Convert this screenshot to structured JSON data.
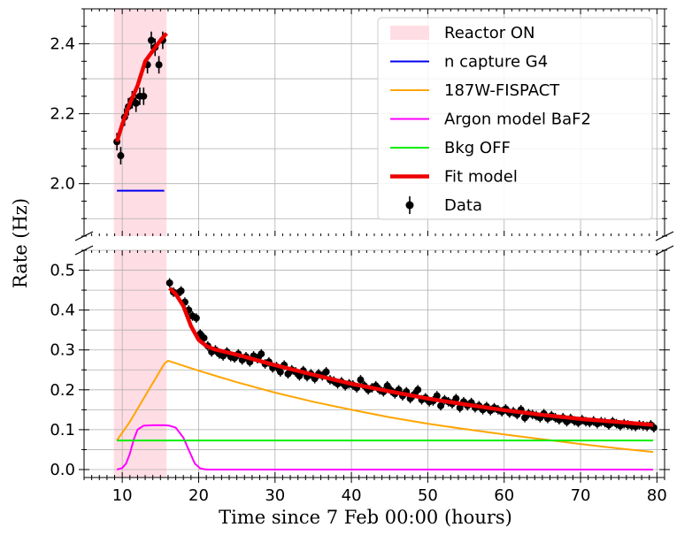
{
  "chart_data": {
    "type": "line",
    "ylabel": "Rate (Hz)",
    "xlabel": "Time since 7 Feb 00:00 (hours)",
    "xlim": [
      5,
      81
    ],
    "broken_axis": true,
    "top_panel": {
      "ylim": [
        1.85,
        2.5
      ],
      "yticks": [
        "2.0",
        "2.2",
        "2.4"
      ],
      "ytick_values": [
        2.0,
        2.2,
        2.4
      ]
    },
    "bottom_panel": {
      "ylim": [
        -0.02,
        0.55
      ],
      "yticks": [
        "0.0",
        "0.1",
        "0.2",
        "0.3",
        "0.4",
        "0.5"
      ],
      "ytick_values": [
        0.0,
        0.1,
        0.2,
        0.3,
        0.4,
        0.5
      ]
    },
    "xticks": [
      "10",
      "20",
      "30",
      "40",
      "50",
      "60",
      "70",
      "80"
    ],
    "xtick_values": [
      10,
      20,
      30,
      40,
      50,
      60,
      70,
      80
    ],
    "reactor_on": {
      "label": "Reactor ON",
      "start": 8.9,
      "end": 15.8,
      "color": "#ffdde4"
    },
    "series": [
      {
        "name": "n capture G4",
        "color": "#0000ee",
        "panel": "top",
        "x": [
          9.3,
          15.5
        ],
        "y": [
          1.98,
          1.98
        ]
      },
      {
        "name": "187W-FISPACT",
        "color": "#ffa500",
        "panel": "bottom",
        "x": [
          9.3,
          11,
          13,
          15.5,
          16,
          20,
          25,
          30,
          35,
          40,
          45,
          50,
          55,
          60,
          65,
          70,
          75,
          79.5
        ],
        "y": [
          0.073,
          0.12,
          0.185,
          0.265,
          0.273,
          0.248,
          0.219,
          0.193,
          0.17,
          0.15,
          0.131,
          0.115,
          0.101,
          0.088,
          0.076,
          0.064,
          0.053,
          0.044
        ]
      },
      {
        "name": "Argon model BaF2",
        "color": "#ff00ff",
        "panel": "bottom",
        "x": [
          9.3,
          10,
          10.5,
          11,
          11.5,
          12,
          12.8,
          14,
          15.5,
          16.2,
          17,
          18,
          18.8,
          19.5,
          20.2,
          21,
          22,
          30,
          40,
          50,
          60,
          70,
          79.5
        ],
        "y": [
          0.0,
          0.004,
          0.015,
          0.04,
          0.075,
          0.1,
          0.11,
          0.111,
          0.111,
          0.11,
          0.105,
          0.08,
          0.045,
          0.015,
          0.003,
          0.0,
          0.0,
          0.0,
          0.0,
          0.0,
          0.0,
          0.0,
          0.0
        ]
      },
      {
        "name": "Bkg OFF",
        "color": "#00ee00",
        "panel": "bottom",
        "x": [
          9.3,
          79.5
        ],
        "y": [
          0.073,
          0.073
        ]
      },
      {
        "name": "Fit model",
        "color": "#ee0000",
        "panel": "both",
        "top_x": [
          9.3,
          10,
          11,
          12,
          13,
          14,
          15,
          15.8
        ],
        "top_y": [
          2.12,
          2.17,
          2.23,
          2.28,
          2.35,
          2.38,
          2.41,
          2.43
        ],
        "bottom_x": [
          16.2,
          17,
          18,
          19,
          20,
          21,
          22,
          25,
          30,
          35,
          40,
          45,
          50,
          55,
          60,
          65,
          70,
          75,
          79.5
        ],
        "bottom_y": [
          0.455,
          0.44,
          0.41,
          0.36,
          0.325,
          0.31,
          0.302,
          0.288,
          0.262,
          0.238,
          0.215,
          0.196,
          0.178,
          0.163,
          0.149,
          0.137,
          0.127,
          0.119,
          0.112
        ]
      },
      {
        "name": "Data",
        "color": "#000000",
        "type": "errorbar",
        "top_x": [
          9.3,
          9.8,
          10.3,
          10.8,
          11.3,
          11.8,
          12.3,
          12.8,
          13.3,
          13.8,
          14.3,
          14.8,
          15.3
        ],
        "top_y": [
          2.12,
          2.08,
          2.19,
          2.22,
          2.24,
          2.23,
          2.25,
          2.25,
          2.34,
          2.41,
          2.39,
          2.34,
          2.41
        ],
        "top_err": 0.025,
        "bottom": [
          [
            16.2,
            0.468
          ],
          [
            16.7,
            0.445
          ],
          [
            17.2,
            0.44
          ],
          [
            17.7,
            0.448
          ],
          [
            18.2,
            0.42
          ],
          [
            18.7,
            0.4
          ],
          [
            19.2,
            0.385
          ],
          [
            19.7,
            0.38
          ],
          [
            20.2,
            0.34
          ],
          [
            20.7,
            0.33
          ],
          [
            21.2,
            0.31
          ],
          [
            21.7,
            0.295
          ],
          [
            22.2,
            0.3
          ],
          [
            22.7,
            0.29
          ],
          [
            23.2,
            0.285
          ],
          [
            23.7,
            0.295
          ],
          [
            24.2,
            0.283
          ],
          [
            24.7,
            0.28
          ],
          [
            25.2,
            0.29
          ],
          [
            25.7,
            0.275
          ],
          [
            26.2,
            0.283
          ],
          [
            26.7,
            0.27
          ],
          [
            27.2,
            0.285
          ],
          [
            27.7,
            0.278
          ],
          [
            28.2,
            0.29
          ],
          [
            28.7,
            0.265
          ],
          [
            29.2,
            0.27
          ],
          [
            29.7,
            0.255
          ],
          [
            30.2,
            0.258
          ],
          [
            30.7,
            0.245
          ],
          [
            31.2,
            0.262
          ],
          [
            31.7,
            0.24
          ],
          [
            32.2,
            0.25
          ],
          [
            32.7,
            0.245
          ],
          [
            33.2,
            0.235
          ],
          [
            33.7,
            0.248
          ],
          [
            34.2,
            0.233
          ],
          [
            34.7,
            0.24
          ],
          [
            35.2,
            0.228
          ],
          [
            35.7,
            0.24
          ],
          [
            36.2,
            0.235
          ],
          [
            36.7,
            0.245
          ],
          [
            37.2,
            0.225
          ],
          [
            37.7,
            0.222
          ],
          [
            38.2,
            0.215
          ],
          [
            38.7,
            0.22
          ],
          [
            39.2,
            0.21
          ],
          [
            39.7,
            0.215
          ],
          [
            40.2,
            0.212
          ],
          [
            40.7,
            0.205
          ],
          [
            41.2,
            0.225
          ],
          [
            41.7,
            0.21
          ],
          [
            42.2,
            0.2
          ],
          [
            42.7,
            0.205
          ],
          [
            43.2,
            0.21
          ],
          [
            43.7,
            0.2
          ],
          [
            44.2,
            0.195
          ],
          [
            44.7,
            0.21
          ],
          [
            45.2,
            0.198
          ],
          [
            45.7,
            0.19
          ],
          [
            46.2,
            0.2
          ],
          [
            46.7,
            0.185
          ],
          [
            47.2,
            0.195
          ],
          [
            47.7,
            0.178
          ],
          [
            48.2,
            0.188
          ],
          [
            48.7,
            0.2
          ],
          [
            49.2,
            0.175
          ],
          [
            49.7,
            0.18
          ],
          [
            50.2,
            0.17
          ],
          [
            50.7,
            0.172
          ],
          [
            51.2,
            0.185
          ],
          [
            51.7,
            0.16
          ],
          [
            52.2,
            0.175
          ],
          [
            52.7,
            0.17
          ],
          [
            53.2,
            0.165
          ],
          [
            53.7,
            0.178
          ],
          [
            54.2,
            0.155
          ],
          [
            54.7,
            0.17
          ],
          [
            55.2,
            0.16
          ],
          [
            55.7,
            0.168
          ],
          [
            56.2,
            0.155
          ],
          [
            56.7,
            0.16
          ],
          [
            57.2,
            0.15
          ],
          [
            57.7,
            0.158
          ],
          [
            58.2,
            0.148
          ],
          [
            58.7,
            0.155
          ],
          [
            59.2,
            0.15
          ],
          [
            59.7,
            0.145
          ],
          [
            60.2,
            0.152
          ],
          [
            60.7,
            0.142
          ],
          [
            61.2,
            0.145
          ],
          [
            61.7,
            0.138
          ],
          [
            62.2,
            0.15
          ],
          [
            62.7,
            0.13
          ],
          [
            63.2,
            0.14
          ],
          [
            63.7,
            0.138
          ],
          [
            64.2,
            0.135
          ],
          [
            64.7,
            0.13
          ],
          [
            65.2,
            0.14
          ],
          [
            65.7,
            0.128
          ],
          [
            66.2,
            0.135
          ],
          [
            66.7,
            0.13
          ],
          [
            67.2,
            0.125
          ],
          [
            67.7,
            0.13
          ],
          [
            68.2,
            0.12
          ],
          [
            68.7,
            0.128
          ],
          [
            69.2,
            0.122
          ],
          [
            69.7,
            0.118
          ],
          [
            70.2,
            0.125
          ],
          [
            70.7,
            0.12
          ],
          [
            71.2,
            0.118
          ],
          [
            71.7,
            0.122
          ],
          [
            72.2,
            0.115
          ],
          [
            72.7,
            0.12
          ],
          [
            73.2,
            0.118
          ],
          [
            73.7,
            0.112
          ],
          [
            74.2,
            0.12
          ],
          [
            74.7,
            0.115
          ],
          [
            75.2,
            0.11
          ],
          [
            75.7,
            0.115
          ],
          [
            76.2,
            0.112
          ],
          [
            76.7,
            0.11
          ],
          [
            77.2,
            0.108
          ],
          [
            77.7,
            0.112
          ],
          [
            78.2,
            0.11
          ],
          [
            78.7,
            0.108
          ],
          [
            79.2,
            0.112
          ],
          [
            79.6,
            0.105
          ]
        ],
        "bottom_err": 0.012
      }
    ],
    "legend": {
      "placement": "top-right of upper panel",
      "entries": [
        "Reactor ON",
        "n capture G4",
        "187W-FISPACT",
        "Argon model BaF2",
        "Bkg OFF",
        "Fit model",
        "Data"
      ]
    }
  }
}
